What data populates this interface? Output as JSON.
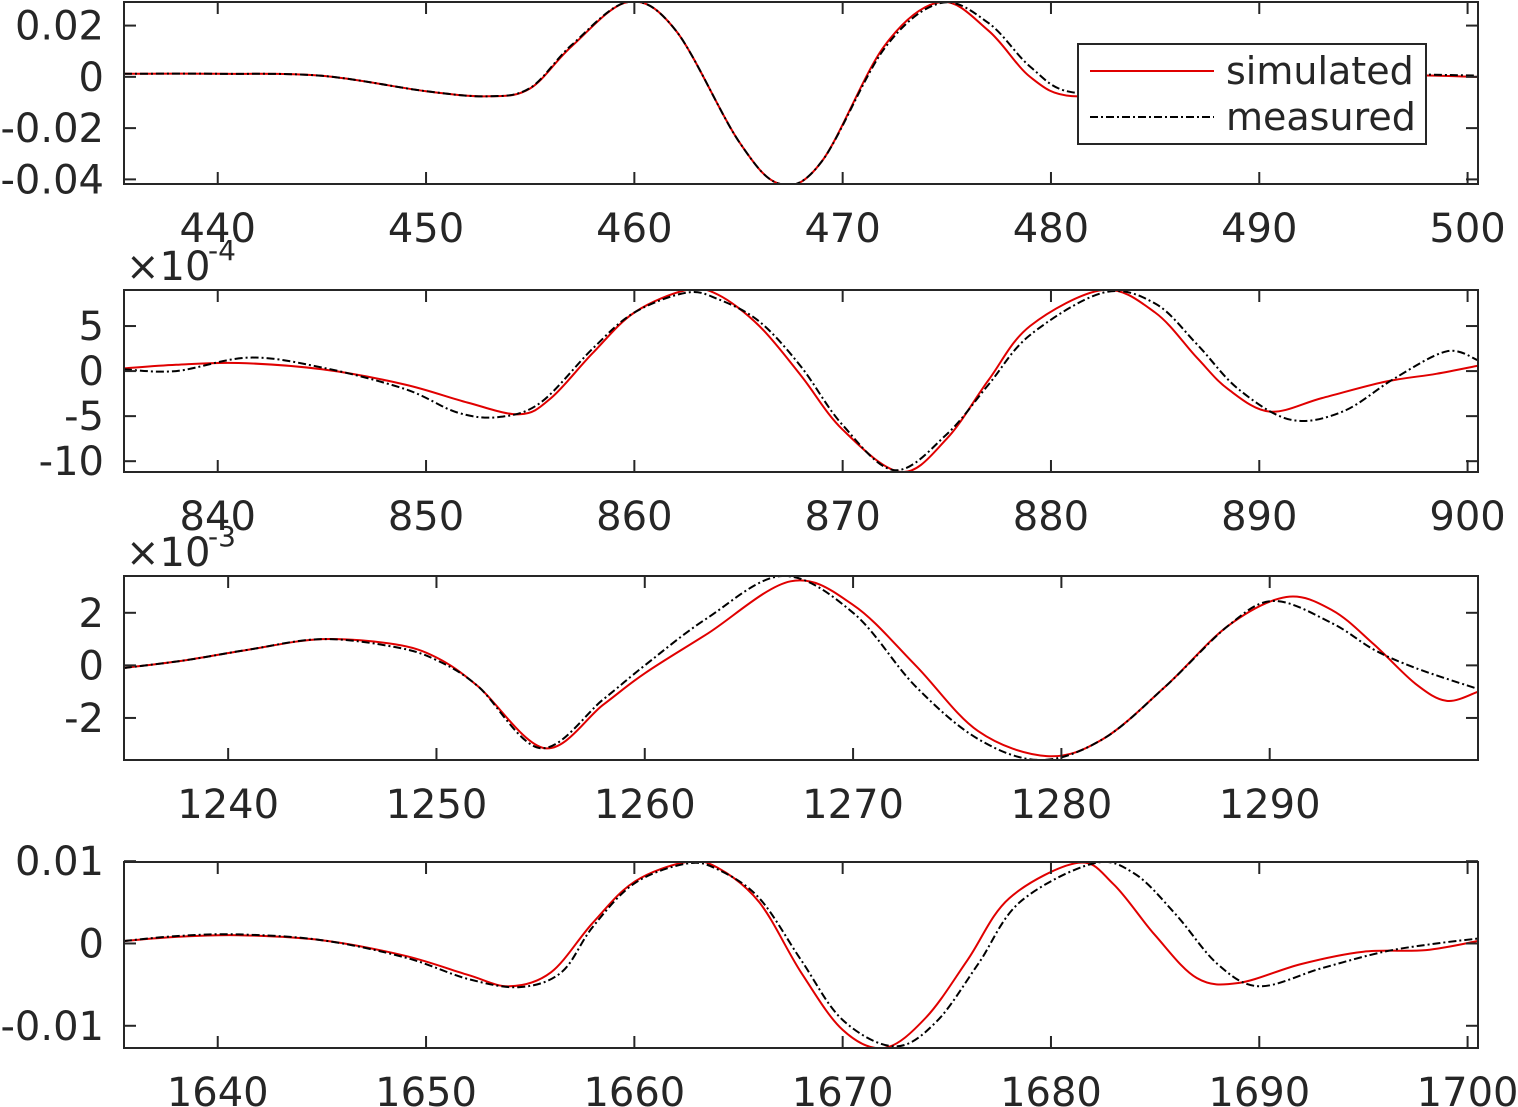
{
  "legend": {
    "entries": [
      "simulated",
      "measured"
    ]
  },
  "chart_data": [
    {
      "type": "line",
      "title": "",
      "xlabel": "",
      "ylabel": "",
      "xlim": [
        435.5,
        500.5
      ],
      "ylim": [
        -0.0418,
        0.0292
      ],
      "xticks": [
        440,
        450,
        460,
        470,
        480,
        490,
        500
      ],
      "xtick_labels": [
        "440",
        "450",
        "460",
        "470",
        "480",
        "490",
        "500"
      ],
      "yticks": [
        -0.04,
        -0.02,
        0,
        0.02
      ],
      "ytick_labels": [
        "-0.04",
        "-0.02",
        "0",
        "0.02"
      ],
      "exponent_label": "",
      "legend": {
        "entries": [
          "simulated",
          "measured"
        ],
        "placement": "top-right"
      },
      "grid": false,
      "series": [
        {
          "name": "simulated",
          "x": [
            435.5,
            440,
            445,
            450,
            453,
            455,
            457,
            459.7,
            462,
            465,
            467,
            469,
            472,
            474.7,
            477,
            479,
            481,
            485,
            490,
            495,
            500.5
          ],
          "y": [
            0.0012,
            0.0012,
            0.0004,
            -0.0056,
            -0.0076,
            -0.0045,
            0.012,
            0.0292,
            0.018,
            -0.025,
            -0.0418,
            -0.033,
            0.012,
            0.0292,
            0.018,
            0.0,
            -0.0075,
            -0.004,
            0.0005,
            0.001,
            0.0
          ]
        },
        {
          "name": "measured",
          "x": [
            435.5,
            440,
            445,
            450,
            453,
            455,
            457,
            459.7,
            462,
            465,
            467,
            469,
            472,
            474.7,
            477,
            479,
            481,
            485,
            490,
            495,
            500.5
          ],
          "y": [
            0.0012,
            0.0012,
            0.0004,
            -0.0056,
            -0.0076,
            -0.0043,
            0.0125,
            0.0292,
            0.018,
            -0.025,
            -0.0418,
            -0.033,
            0.011,
            0.0288,
            0.021,
            0.004,
            -0.006,
            -0.004,
            0.0005,
            0.0012,
            0.0005
          ]
        }
      ]
    },
    {
      "type": "line",
      "title": "",
      "xlabel": "",
      "ylabel": "",
      "xlim": [
        835.5,
        900.5
      ],
      "ylim": [
        -11.2,
        9.0
      ],
      "xticks": [
        840,
        850,
        860,
        870,
        880,
        890,
        900
      ],
      "xtick_labels": [
        "840",
        "850",
        "860",
        "870",
        "880",
        "890",
        "900"
      ],
      "yticks": [
        -10,
        -5,
        0,
        5
      ],
      "ytick_labels": [
        "-10",
        "-5",
        "0",
        "5"
      ],
      "exponent_label": "×10",
      "exponent_power": "-4",
      "grid": false,
      "series": [
        {
          "name": "simulated",
          "x": [
            835.5,
            838,
            841,
            845,
            849,
            852,
            854.5,
            856,
            858,
            860,
            862.5,
            864,
            866,
            868,
            870,
            872.8,
            875,
            877,
            879,
            882.5,
            885,
            887,
            888.5,
            890.5,
            893,
            896,
            898.5,
            900.5
          ],
          "y": [
            0.3,
            0.7,
            0.9,
            0.2,
            -1.5,
            -3.5,
            -4.8,
            -3.0,
            2.0,
            6.5,
            9.0,
            8.5,
            5.0,
            -0.5,
            -6.5,
            -11.2,
            -7.5,
            -1.0,
            5.0,
            9.0,
            6.5,
            1.5,
            -2.0,
            -4.5,
            -3.0,
            -1.2,
            -0.3,
            0.6
          ]
        },
        {
          "name": "measured",
          "x": [
            835.5,
            838,
            841.5,
            845,
            849,
            851.5,
            853.5,
            855.5,
            858,
            860,
            862.5,
            864,
            866,
            868,
            870,
            872.5,
            875,
            877,
            879,
            882.5,
            885,
            887,
            889,
            891.5,
            894,
            896.5,
            899,
            900.5
          ],
          "y": [
            0.2,
            0.0,
            1.5,
            0.4,
            -2.0,
            -4.6,
            -5.1,
            -3.5,
            2.5,
            6.5,
            8.7,
            8.0,
            5.5,
            0.5,
            -6.0,
            -11.0,
            -7.0,
            -1.5,
            4.0,
            8.7,
            7.5,
            3.0,
            -2.0,
            -5.4,
            -4.5,
            -0.8,
            2.2,
            1.2
          ]
        }
      ]
    },
    {
      "type": "line",
      "title": "",
      "xlabel": "",
      "ylabel": "",
      "xlim": [
        1235,
        1300
      ],
      "ylim": [
        -3.6,
        3.4
      ],
      "xticks": [
        1240,
        1250,
        1260,
        1270,
        1280,
        1290
      ],
      "xtick_labels": [
        "1240",
        "1250",
        "1260",
        "1270",
        "1280",
        "1290"
      ],
      "yticks": [
        -2,
        0,
        2
      ],
      "ytick_labels": [
        "-2",
        "0",
        "2"
      ],
      "exponent_label": "×10",
      "exponent_power": "-3",
      "grid": false,
      "series": [
        {
          "name": "simulated",
          "x": [
            1235,
            1238,
            1241,
            1244.5,
            1248,
            1250,
            1252,
            1255.2,
            1258,
            1260,
            1263,
            1267,
            1270,
            1273,
            1276,
            1279.3,
            1282,
            1285,
            1288,
            1290.8,
            1293,
            1295,
            1297,
            1298.5,
            1300
          ],
          "y": [
            -0.1,
            0.2,
            0.6,
            1.0,
            0.8,
            0.3,
            -0.8,
            -3.15,
            -1.5,
            -0.3,
            1.2,
            3.2,
            2.3,
            0.0,
            -2.5,
            -3.45,
            -2.8,
            -0.8,
            1.5,
            2.6,
            2.1,
            0.8,
            -0.7,
            -1.35,
            -1.0
          ]
        },
        {
          "name": "measured",
          "x": [
            1235,
            1238,
            1241,
            1244.5,
            1248,
            1250,
            1252,
            1255,
            1258,
            1260,
            1263,
            1266.6,
            1270,
            1273,
            1276,
            1279,
            1282,
            1285,
            1288,
            1290.2,
            1293,
            1295,
            1297,
            1300
          ],
          "y": [
            -0.1,
            0.2,
            0.6,
            1.0,
            0.7,
            0.2,
            -0.8,
            -3.15,
            -1.3,
            0.0,
            1.8,
            3.4,
            2.0,
            -0.8,
            -2.8,
            -3.6,
            -2.8,
            -0.8,
            1.5,
            2.45,
            1.6,
            0.6,
            -0.1,
            -0.9
          ]
        }
      ]
    },
    {
      "type": "line",
      "title": "",
      "xlabel": "",
      "ylabel": "",
      "xlim": [
        1635.5,
        1700.5
      ],
      "ylim": [
        -0.0127,
        0.0099
      ],
      "xticks": [
        1640,
        1650,
        1660,
        1670,
        1680,
        1690,
        1700
      ],
      "xtick_labels": [
        "1640",
        "1650",
        "1660",
        "1670",
        "1680",
        "1690",
        "1700"
      ],
      "yticks": [
        -0.01,
        0,
        0.01
      ],
      "ytick_labels": [
        "-0.01",
        "0",
        "0.01"
      ],
      "exponent_label": "",
      "grid": false,
      "series": [
        {
          "name": "simulated",
          "x": [
            1635.5,
            1638,
            1641,
            1645,
            1649,
            1652,
            1654,
            1656,
            1658,
            1660,
            1662.5,
            1664,
            1666,
            1668,
            1670,
            1672,
            1674,
            1676,
            1678,
            1681.3,
            1683,
            1685,
            1687,
            1689,
            1692,
            1695,
            1698,
            1700.5
          ],
          "y": [
            0.0003,
            0.0008,
            0.001,
            0.0004,
            -0.0015,
            -0.0038,
            -0.0052,
            -0.0035,
            0.0025,
            0.0075,
            0.0099,
            0.0092,
            0.005,
            -0.0035,
            -0.0105,
            -0.0127,
            -0.009,
            -0.002,
            0.0055,
            0.0098,
            0.0072,
            0.001,
            -0.0042,
            -0.0048,
            -0.0025,
            -0.001,
            -0.0008,
            0.0003
          ]
        },
        {
          "name": "measured",
          "x": [
            1635.5,
            1638,
            1641,
            1645,
            1649,
            1652,
            1654.5,
            1656.5,
            1658,
            1660,
            1662.5,
            1664,
            1666,
            1668,
            1670,
            1672.5,
            1674.5,
            1676.5,
            1678.5,
            1682,
            1684,
            1686,
            1688,
            1690,
            1693,
            1696,
            1698.5,
            1700.5
          ],
          "y": [
            0.0003,
            0.0009,
            0.0011,
            0.0004,
            -0.0017,
            -0.0043,
            -0.0053,
            -0.0035,
            0.002,
            0.0073,
            0.0097,
            0.009,
            0.0055,
            -0.002,
            -0.0093,
            -0.0125,
            -0.0095,
            -0.0025,
            0.005,
            0.0097,
            0.0085,
            0.0035,
            -0.0025,
            -0.0052,
            -0.003,
            -0.001,
            0.0,
            0.0006
          ]
        }
      ]
    }
  ]
}
